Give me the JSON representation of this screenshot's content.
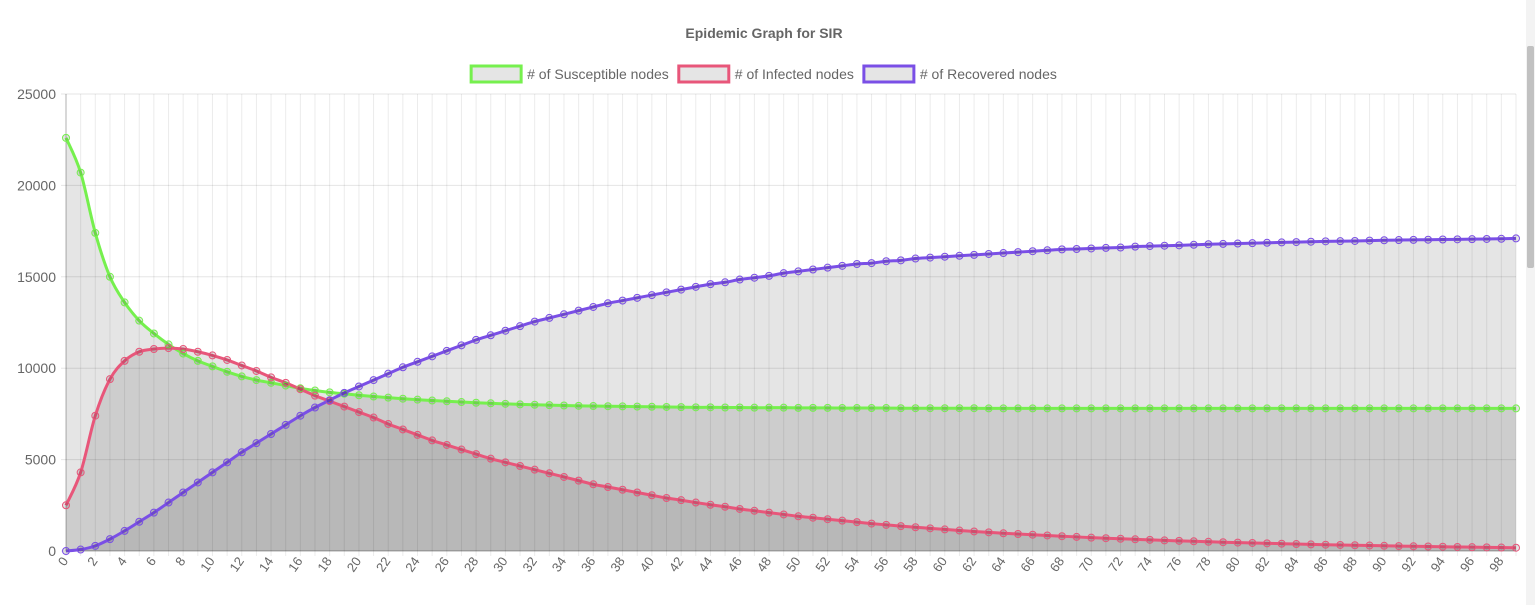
{
  "chart_data": {
    "type": "line",
    "title": "Epidemic Graph for SIR",
    "xlabel": "",
    "ylabel": "",
    "ylim": [
      0,
      25000
    ],
    "yticks": [
      0,
      5000,
      10000,
      15000,
      20000,
      25000
    ],
    "x_start": 0,
    "x_end": 99,
    "x_tick_step": 2,
    "legend_position": "top",
    "grid": true,
    "fill": true,
    "series": [
      {
        "name": "# of Susceptible nodes",
        "color": "#76f04e",
        "values": [
          22600,
          20700,
          17400,
          15000,
          13600,
          12600,
          11900,
          11300,
          10800,
          10400,
          10100,
          9800,
          9550,
          9350,
          9200,
          9050,
          8900,
          8780,
          8680,
          8600,
          8520,
          8450,
          8390,
          8330,
          8280,
          8230,
          8190,
          8150,
          8110,
          8080,
          8050,
          8020,
          8000,
          7980,
          7960,
          7940,
          7930,
          7920,
          7910,
          7900,
          7890,
          7880,
          7870,
          7860,
          7860,
          7850,
          7850,
          7840,
          7840,
          7840,
          7830,
          7830,
          7830,
          7820,
          7820,
          7820,
          7820,
          7810,
          7810,
          7810,
          7810,
          7810,
          7810,
          7800,
          7800,
          7800,
          7800,
          7800,
          7800,
          7800,
          7800,
          7800,
          7800,
          7800,
          7800,
          7800,
          7800,
          7800,
          7800,
          7800,
          7800,
          7800,
          7800,
          7800,
          7800,
          7800,
          7800,
          7800,
          7800,
          7800,
          7800,
          7800,
          7800,
          7800,
          7800,
          7800,
          7800,
          7800,
          7800,
          7800
        ]
      },
      {
        "name": "# of Infected nodes",
        "color": "#e8567a",
        "values": [
          2500,
          4300,
          7400,
          9400,
          10400,
          10900,
          11050,
          11100,
          11050,
          10900,
          10700,
          10450,
          10150,
          9850,
          9500,
          9200,
          8850,
          8500,
          8200,
          7900,
          7600,
          7300,
          6950,
          6650,
          6350,
          6050,
          5800,
          5550,
          5300,
          5050,
          4850,
          4650,
          4450,
          4250,
          4050,
          3850,
          3650,
          3500,
          3350,
          3200,
          3050,
          2900,
          2780,
          2650,
          2530,
          2420,
          2300,
          2200,
          2100,
          2000,
          1900,
          1820,
          1740,
          1660,
          1580,
          1500,
          1430,
          1360,
          1300,
          1240,
          1180,
          1120,
          1070,
          1020,
          970,
          930,
          890,
          850,
          810,
          770,
          730,
          700,
          670,
          640,
          610,
          580,
          555,
          530,
          505,
          480,
          460,
          440,
          420,
          400,
          380,
          360,
          345,
          330,
          315,
          300,
          285,
          270,
          258,
          246,
          234,
          222,
          210,
          200,
          190,
          180
        ]
      },
      {
        "name": "# of Recovered nodes",
        "color": "#7a4fe6",
        "values": [
          0,
          80,
          280,
          650,
          1100,
          1600,
          2100,
          2650,
          3200,
          3750,
          4300,
          4850,
          5400,
          5900,
          6400,
          6900,
          7400,
          7850,
          8250,
          8650,
          9000,
          9350,
          9700,
          10050,
          10350,
          10650,
          10950,
          11250,
          11550,
          11800,
          12050,
          12300,
          12550,
          12750,
          12950,
          13150,
          13350,
          13550,
          13700,
          13850,
          14000,
          14150,
          14300,
          14450,
          14600,
          14700,
          14850,
          14950,
          15050,
          15200,
          15300,
          15400,
          15500,
          15600,
          15700,
          15750,
          15850,
          15900,
          16000,
          16050,
          16100,
          16150,
          16200,
          16250,
          16300,
          16350,
          16400,
          16450,
          16500,
          16520,
          16550,
          16580,
          16600,
          16650,
          16680,
          16700,
          16720,
          16750,
          16780,
          16800,
          16820,
          16840,
          16860,
          16880,
          16900,
          16920,
          16940,
          16950,
          16960,
          16980,
          17000,
          17010,
          17020,
          17030,
          17040,
          17050,
          17060,
          17070,
          17080,
          17100
        ]
      }
    ]
  }
}
